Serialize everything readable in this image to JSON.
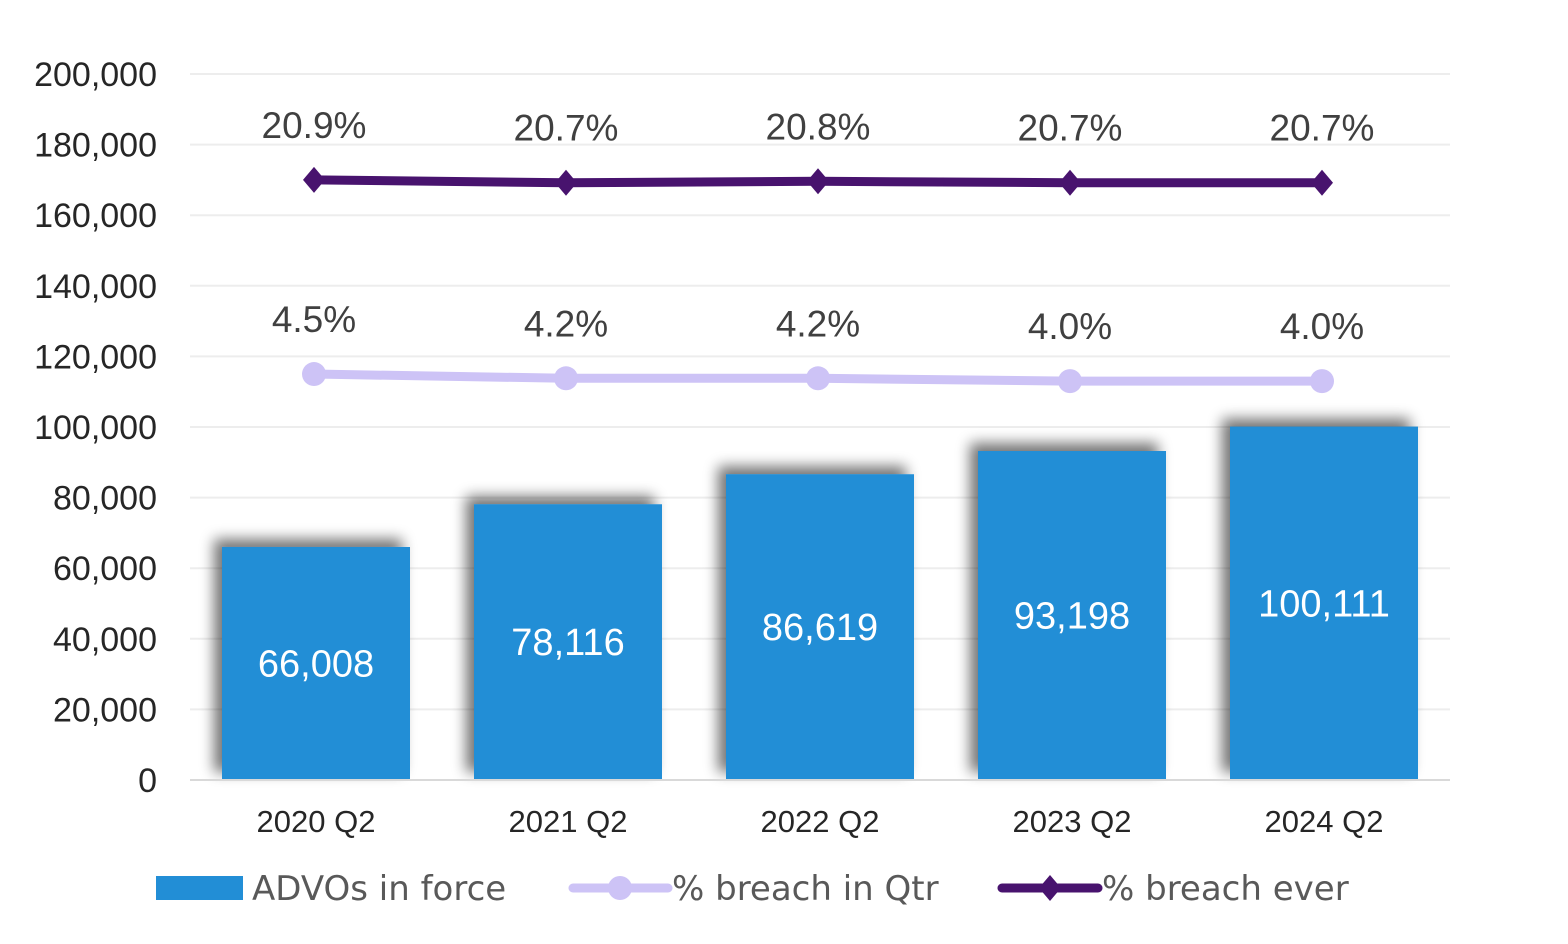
{
  "chart_data": {
    "type": "bar",
    "title": "",
    "xlabel": "",
    "ylabel": "",
    "ylim": [
      0,
      200000
    ],
    "yticks": [
      "0",
      "20,000",
      "40,000",
      "60,000",
      "80,000",
      "100,000",
      "120,000",
      "140,000",
      "160,000",
      "180,000",
      "200,000"
    ],
    "ytick_values": [
      0,
      20000,
      40000,
      60000,
      80000,
      100000,
      120000,
      140000,
      160000,
      180000,
      200000
    ],
    "grid": true,
    "legend_position": "bottom",
    "categories": [
      "2020 Q2",
      "2021 Q2",
      "2022 Q2",
      "2023 Q2",
      "2024 Q2"
    ],
    "series": [
      {
        "name": "ADVOs in force",
        "kind": "bar",
        "color": "#228ED6",
        "values": [
          66008,
          78116,
          86619,
          93198,
          100111
        ],
        "labels": [
          "66,008",
          "78,116",
          "86,619",
          "93,198",
          "100,111"
        ]
      },
      {
        "name": "% breach in Qtr",
        "kind": "line",
        "marker": "circle",
        "color": "#CDC3F6",
        "axis": "secondary (hidden)",
        "values": [
          4.5,
          4.2,
          4.2,
          4.0,
          4.0
        ],
        "labels": [
          "4.5%",
          "4.2%",
          "4.2%",
          "4.0%",
          "4.0%"
        ]
      },
      {
        "name": "% breach ever",
        "kind": "line",
        "marker": "diamond",
        "color": "#48136E",
        "axis": "secondary (hidden)",
        "values": [
          20.9,
          20.7,
          20.8,
          20.7,
          20.7
        ],
        "labels": [
          "20.9%",
          "20.7%",
          "20.8%",
          "20.7%",
          "20.7%"
        ]
      }
    ]
  }
}
